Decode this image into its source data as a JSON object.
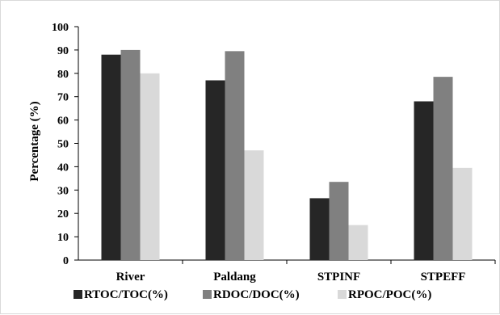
{
  "chart_data": {
    "type": "bar",
    "categories": [
      "River",
      "Paldang",
      "STPINF",
      "STPEFF"
    ],
    "series": [
      {
        "name": "RTOC/TOC(%)",
        "values": [
          88,
          77,
          26.5,
          68
        ],
        "color": "#262626"
      },
      {
        "name": "RDOC/DOC(%)",
        "values": [
          90,
          89.5,
          33.5,
          78.5
        ],
        "color": "#808080"
      },
      {
        "name": "RPOC/POC(%)",
        "values": [
          80,
          47,
          15,
          39.5
        ],
        "color": "#d9d9d9"
      }
    ],
    "title": "",
    "xlabel": "",
    "ylabel": "Percentage (%)",
    "ylim": [
      0,
      100
    ],
    "yticks": [
      0,
      10,
      20,
      30,
      40,
      50,
      60,
      70,
      80,
      90,
      100
    ],
    "grid": false,
    "legend_position": "bottom"
  }
}
